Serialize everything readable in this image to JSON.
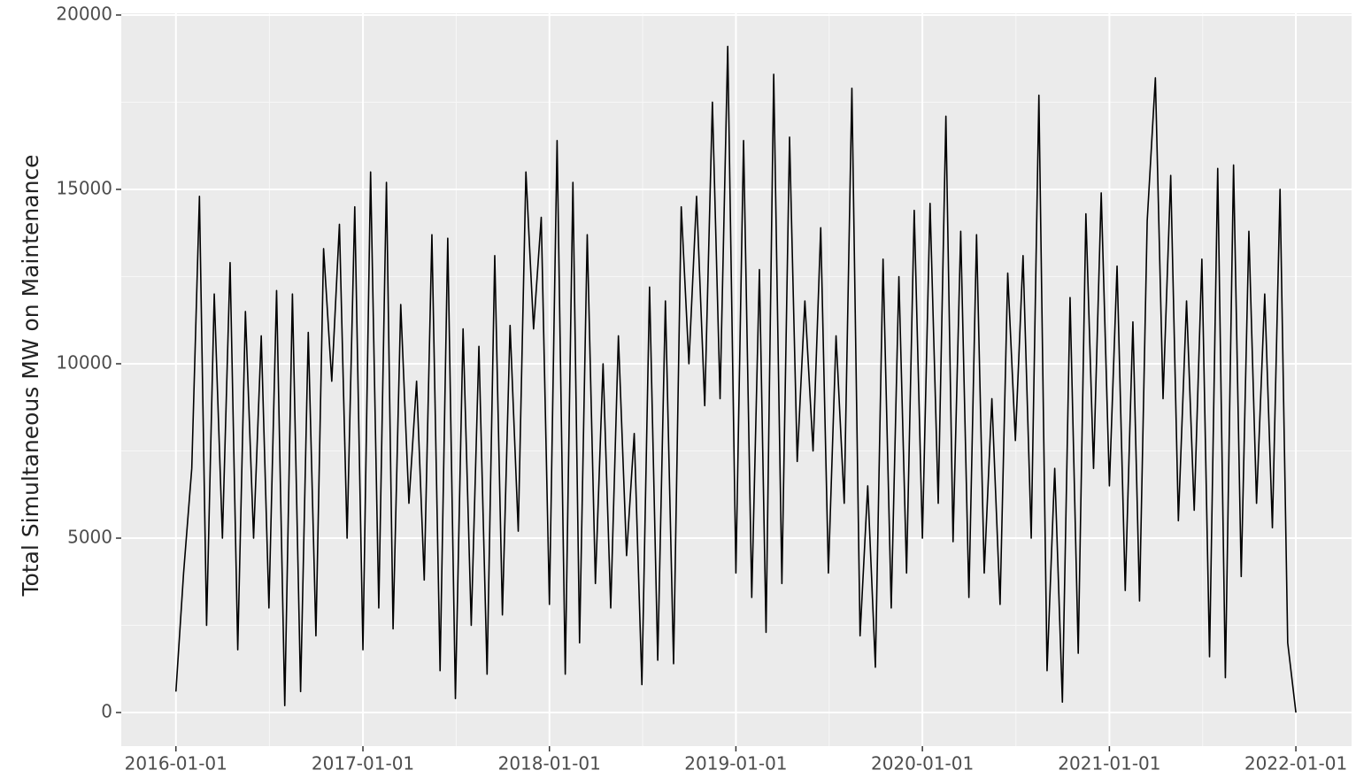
{
  "chart_data": {
    "type": "line",
    "y_label": "Total Simultaneous MW on Maintenance",
    "color": "#000000",
    "grid": true,
    "xlim": [
      "2015-09-16",
      "2022-04-20"
    ],
    "xticks": [
      "2016-01-01",
      "2017-01-01",
      "2018-01-01",
      "2019-01-01",
      "2020-01-01",
      "2021-01-01",
      "2022-01-01"
    ],
    "ylim": [
      -964,
      20050
    ],
    "yticks": [
      0,
      5000,
      10000,
      15000,
      20000
    ],
    "x": [
      "2016-01-01",
      "2016-01-16",
      "2016-02-01",
      "2016-02-16",
      "2016-03-01",
      "2016-03-16",
      "2016-04-01",
      "2016-04-16",
      "2016-05-01",
      "2016-05-16",
      "2016-06-01",
      "2016-06-16",
      "2016-07-01",
      "2016-07-16",
      "2016-08-01",
      "2016-08-16",
      "2016-09-01",
      "2016-09-16",
      "2016-10-01",
      "2016-10-16",
      "2016-11-01",
      "2016-11-16",
      "2016-12-01",
      "2016-12-16",
      "2017-01-01",
      "2017-01-16",
      "2017-02-01",
      "2017-02-16",
      "2017-03-01",
      "2017-03-16",
      "2017-04-01",
      "2017-04-16",
      "2017-05-01",
      "2017-05-16",
      "2017-06-01",
      "2017-06-16",
      "2017-07-01",
      "2017-07-16",
      "2017-08-01",
      "2017-08-16",
      "2017-09-01",
      "2017-09-16",
      "2017-10-01",
      "2017-10-16",
      "2017-11-01",
      "2017-11-16",
      "2017-12-01",
      "2017-12-16",
      "2018-01-01",
      "2018-01-16",
      "2018-02-01",
      "2018-02-16",
      "2018-03-01",
      "2018-03-16",
      "2018-04-01",
      "2018-04-16",
      "2018-05-01",
      "2018-05-16",
      "2018-06-01",
      "2018-06-16",
      "2018-07-01",
      "2018-07-16",
      "2018-08-01",
      "2018-08-16",
      "2018-09-01",
      "2018-09-16",
      "2018-10-01",
      "2018-10-16",
      "2018-11-01",
      "2018-11-16",
      "2018-12-01",
      "2018-12-16",
      "2019-01-01",
      "2019-01-16",
      "2019-02-01",
      "2019-02-16",
      "2019-03-01",
      "2019-03-16",
      "2019-04-01",
      "2019-04-16",
      "2019-05-01",
      "2019-05-16",
      "2019-06-01",
      "2019-06-16",
      "2019-07-01",
      "2019-07-16",
      "2019-08-01",
      "2019-08-16",
      "2019-09-01",
      "2019-09-16",
      "2019-10-01",
      "2019-10-16",
      "2019-11-01",
      "2019-11-16",
      "2019-12-01",
      "2019-12-16",
      "2020-01-01",
      "2020-01-16",
      "2020-02-01",
      "2020-02-16",
      "2020-03-01",
      "2020-03-16",
      "2020-04-01",
      "2020-04-16",
      "2020-05-01",
      "2020-05-16",
      "2020-06-01",
      "2020-06-16",
      "2020-07-01",
      "2020-07-16",
      "2020-08-01",
      "2020-08-16",
      "2020-09-01",
      "2020-09-16",
      "2020-10-01",
      "2020-10-16",
      "2020-11-01",
      "2020-11-16",
      "2020-12-01",
      "2020-12-16",
      "2021-01-01",
      "2021-01-16",
      "2021-02-01",
      "2021-02-16",
      "2021-03-01",
      "2021-03-16",
      "2021-04-01",
      "2021-04-16",
      "2021-05-01",
      "2021-05-16",
      "2021-06-01",
      "2021-06-16",
      "2021-07-01",
      "2021-07-16",
      "2021-08-01",
      "2021-08-16",
      "2021-09-01",
      "2021-09-16",
      "2021-10-01",
      "2021-10-16",
      "2021-11-01",
      "2021-11-16",
      "2021-12-01",
      "2021-12-16",
      "2022-01-01"
    ],
    "values": [
      600,
      4000,
      7000,
      14800,
      2500,
      12000,
      5000,
      12900,
      1800,
      11500,
      5000,
      10800,
      3000,
      12100,
      200,
      12000,
      600,
      10900,
      2200,
      13300,
      9500,
      14000,
      5000,
      14500,
      1800,
      15500,
      3000,
      15200,
      2400,
      11700,
      6000,
      9500,
      3800,
      13700,
      1200,
      13600,
      400,
      11000,
      2500,
      10500,
      1100,
      13100,
      2800,
      11100,
      5200,
      15500,
      11000,
      14200,
      3100,
      16400,
      1100,
      15200,
      2000,
      13700,
      3700,
      10000,
      3000,
      10800,
      4500,
      8000,
      800,
      12200,
      1500,
      11800,
      1400,
      14500,
      10000,
      14800,
      8800,
      17500,
      9000,
      19100,
      4000,
      16400,
      3300,
      12700,
      2300,
      18300,
      3700,
      16500,
      7200,
      11800,
      7500,
      13900,
      4000,
      10800,
      6000,
      17900,
      2200,
      6500,
      1300,
      13000,
      3000,
      12500,
      4000,
      14400,
      5000,
      14600,
      6000,
      17100,
      4900,
      13800,
      3300,
      13700,
      4000,
      9000,
      3100,
      12600,
      7800,
      13100,
      5000,
      17700,
      1200,
      7000,
      300,
      11900,
      1700,
      14300,
      7000,
      14900,
      6500,
      12800,
      3500,
      11200,
      3200,
      14100,
      18200,
      9000,
      15400,
      5500,
      11800,
      5800,
      13000,
      1600,
      15600,
      1000,
      15700,
      3900,
      13800,
      6000,
      12000,
      5300,
      15000,
      2000,
      0
    ]
  }
}
